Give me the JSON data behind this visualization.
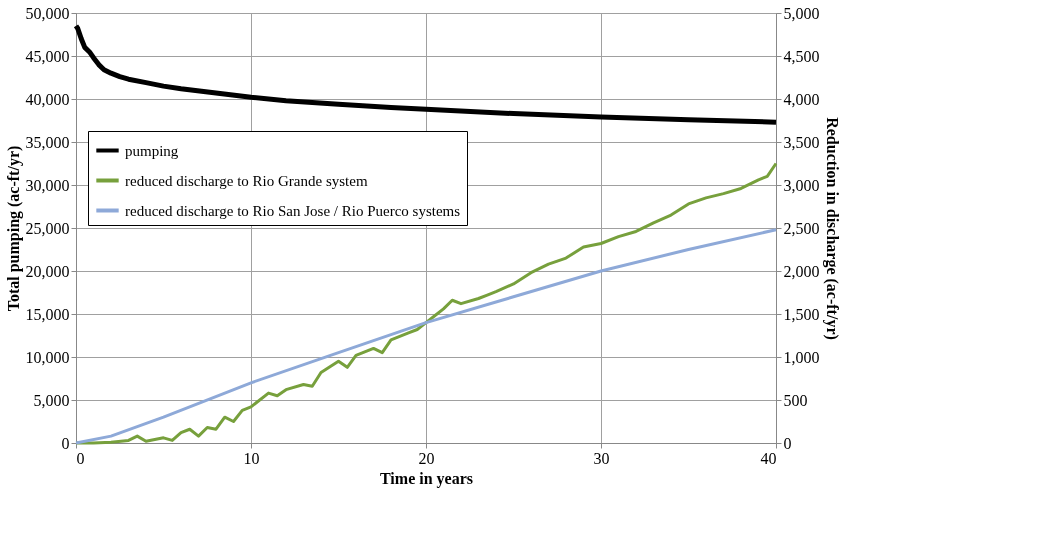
{
  "chart_data": {
    "type": "line",
    "xlabel": "Time in years",
    "ylabel": "Total pumping (ac-ft/yr)",
    "y2label": "Reduction in discharge (ac-ft/yr)",
    "xlim": [
      0,
      40
    ],
    "xticks": [
      0,
      10,
      20,
      30,
      40
    ],
    "ylim": [
      0,
      50000
    ],
    "yticks": [
      0,
      {
        "value": 5000,
        "label": "5,000"
      },
      {
        "value": 10000,
        "label": "10,000"
      },
      {
        "value": 15000,
        "label": "15,000"
      },
      {
        "value": 20000,
        "label": "20,000"
      },
      {
        "value": 25000,
        "label": "25,000"
      },
      {
        "value": 30000,
        "label": "30,000"
      },
      {
        "value": 35000,
        "label": "35,000"
      },
      {
        "value": 40000,
        "label": "40,000"
      },
      {
        "value": 45000,
        "label": "45,000"
      },
      {
        "value": 50000,
        "label": "50,000"
      }
    ],
    "y2lim": [
      0,
      5000
    ],
    "y2ticks": [
      0,
      500,
      {
        "value": 1000,
        "label": "1,000"
      },
      {
        "value": 1500,
        "label": "1,500"
      },
      {
        "value": 2000,
        "label": "2,000"
      },
      {
        "value": 2500,
        "label": "2,500"
      },
      {
        "value": 3000,
        "label": "3,000"
      },
      {
        "value": 3500,
        "label": "3,500"
      },
      {
        "value": 4000,
        "label": "4,000"
      },
      {
        "value": 4500,
        "label": "4,500"
      },
      {
        "value": 5000,
        "label": "5,000"
      }
    ],
    "grid": true,
    "legend": "top left",
    "marker": "none",
    "line_style": "solid",
    "series": [
      {
        "name": "pumping",
        "color": "#000000",
        "x": [
          0,
          0.1,
          0.3,
          0.5,
          0.8,
          1,
          1.3,
          1.6,
          2,
          2.5,
          3,
          4,
          5,
          6,
          8,
          10,
          12,
          15,
          18,
          20,
          25,
          30,
          35,
          40
        ],
        "values": [
          48500,
          48200,
          47000,
          46000,
          45400,
          44800,
          44000,
          43400,
          43000,
          42600,
          42300,
          41900,
          41500,
          41200,
          40700,
          40200,
          39800,
          39400,
          39000,
          38800,
          38300,
          37900,
          37600,
          37300
        ]
      },
      {
        "name": "reduced discharge to Rio Grande system",
        "color": "#77a03c",
        "axis": "y2",
        "x": [
          0,
          1,
          2,
          3,
          3.5,
          4,
          5,
          5.5,
          6,
          6.5,
          7,
          7.5,
          8,
          8.5,
          9,
          9.5,
          10,
          11,
          11.5,
          12,
          13,
          13.5,
          14,
          15,
          15.5,
          16,
          17,
          17.5,
          18,
          19,
          19.5,
          20,
          20.5,
          21,
          21.5,
          22,
          23,
          23.5,
          24,
          25,
          26,
          27,
          28,
          29,
          30,
          31,
          32,
          33,
          34,
          35,
          36,
          37,
          38,
          39,
          39.5,
          40
        ],
        "values": [
          0,
          0,
          10,
          30,
          80,
          20,
          60,
          30,
          120,
          160,
          80,
          180,
          160,
          300,
          250,
          380,
          420,
          580,
          550,
          620,
          680,
          660,
          820,
          950,
          880,
          1020,
          1100,
          1050,
          1200,
          1280,
          1320,
          1400,
          1480,
          1560,
          1660,
          1620,
          1680,
          1720,
          1760,
          1850,
          1980,
          2080,
          2150,
          2280,
          2320,
          2400,
          2460,
          2560,
          2650,
          2780,
          2850,
          2900,
          2960,
          3060,
          3100,
          3250
        ]
      },
      {
        "name": "reduced discharge to Rio San Jose / Rio Puerco systems",
        "color": "#8ea9d8",
        "axis": "y2",
        "x": [
          0,
          2,
          5,
          10,
          15,
          20,
          25,
          30,
          35,
          40
        ],
        "values": [
          0,
          80,
          300,
          700,
          1050,
          1400,
          1700,
          2000,
          2250,
          2480
        ]
      }
    ]
  }
}
